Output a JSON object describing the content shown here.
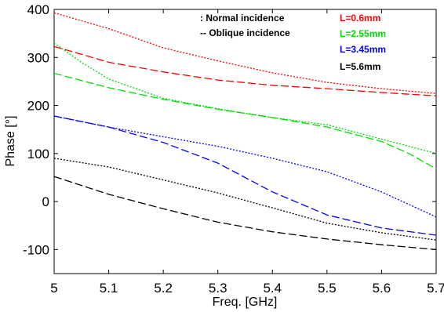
{
  "chart_data": {
    "type": "line",
    "xlabel": "Freq. [GHz]",
    "ylabel": "Phase [°]",
    "xlim": [
      5,
      5.7
    ],
    "ylim": [
      -150,
      400
    ],
    "xticks": [
      "5",
      "5.1",
      "5.2",
      "5.3",
      "5.4",
      "5.5",
      "5.6",
      "5.7"
    ],
    "yticks": [
      "-100",
      "0",
      "100",
      "200",
      "300",
      "400"
    ],
    "legend_style": [
      {
        "label": ": Normal incidence",
        "dash": "dotted"
      },
      {
        "label": "-- Oblique incidence",
        "dash": "dashed"
      }
    ],
    "legend_colors": [
      {
        "label": "L=0.6mm",
        "color": "#ff0000"
      },
      {
        "label": "L=2.55mm",
        "color": "#00dd00"
      },
      {
        "label": "L=3.45mm",
        "color": "#0000ff"
      },
      {
        "label": "L=5.6mm",
        "color": "#000000"
      }
    ],
    "series": [
      {
        "color": "#ff0000",
        "dash": "dotted",
        "x": [
          5,
          5.1,
          5.2,
          5.3,
          5.4,
          5.5,
          5.6,
          5.7
        ],
        "y": [
          393,
          360,
          320,
          293,
          268,
          248,
          235,
          225
        ]
      },
      {
        "color": "#ff0000",
        "dash": "dashed",
        "x": [
          5,
          5.1,
          5.2,
          5.3,
          5.4,
          5.5,
          5.6,
          5.7
        ],
        "y": [
          323,
          290,
          270,
          253,
          242,
          235,
          227,
          220
        ]
      },
      {
        "color": "#00dd00",
        "dash": "dotted",
        "x": [
          5,
          5.05,
          5.1,
          5.2,
          5.3,
          5.4,
          5.5,
          5.6,
          5.7
        ],
        "y": [
          330,
          290,
          255,
          215,
          193,
          175,
          160,
          130,
          100
        ]
      },
      {
        "color": "#00dd00",
        "dash": "dashed",
        "x": [
          5,
          5.1,
          5.2,
          5.3,
          5.4,
          5.5,
          5.6,
          5.65,
          5.7
        ],
        "y": [
          267,
          237,
          213,
          192,
          175,
          155,
          125,
          100,
          68
        ]
      },
      {
        "color": "#0000ff",
        "dash": "dotted",
        "x": [
          5,
          5.1,
          5.2,
          5.3,
          5.4,
          5.5,
          5.6,
          5.7
        ],
        "y": [
          178,
          155,
          135,
          115,
          90,
          62,
          20,
          -32
        ]
      },
      {
        "color": "#0000ff",
        "dash": "dashed",
        "x": [
          5,
          5.1,
          5.2,
          5.3,
          5.4,
          5.5,
          5.6,
          5.7
        ],
        "y": [
          178,
          155,
          123,
          80,
          20,
          -28,
          -55,
          -70
        ]
      },
      {
        "color": "#000000",
        "dash": "dotted",
        "x": [
          5,
          5.1,
          5.2,
          5.3,
          5.4,
          5.5,
          5.6,
          5.7
        ],
        "y": [
          90,
          72,
          45,
          18,
          -13,
          -45,
          -65,
          -80
        ]
      },
      {
        "color": "#000000",
        "dash": "dashed",
        "x": [
          5,
          5.1,
          5.2,
          5.3,
          5.4,
          5.5,
          5.6,
          5.7
        ],
        "y": [
          52,
          15,
          -15,
          -43,
          -63,
          -78,
          -90,
          -100
        ]
      }
    ]
  }
}
